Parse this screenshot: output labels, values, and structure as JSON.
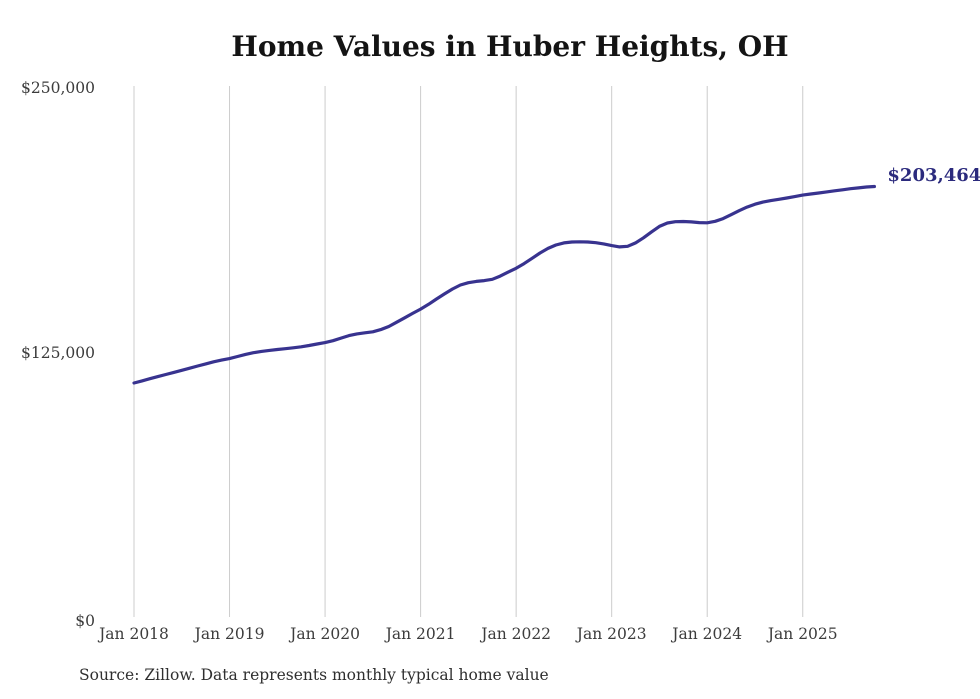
{
  "header": {
    "title": "Home Values in Huber Heights, OH"
  },
  "footer": {
    "source_note": "Source: Zillow. Data represents monthly typical home value"
  },
  "colors": {
    "line": "#38338f",
    "end_label_text": "#2b2a7d",
    "gridline": "#cccccc",
    "axis_text": "#3c3c3c",
    "title_text": "#141414",
    "background": "#ffffff"
  },
  "chart_data": {
    "type": "line",
    "title": "Home Values in Huber Heights, OH",
    "xlabel": "",
    "ylabel": "",
    "ylim": [
      0,
      250000
    ],
    "grid": "vertical-only",
    "legend": "none",
    "x_start": "Jan 2018",
    "x_end": "Oct 2025",
    "x_interval": "month",
    "x_tick_labels": [
      "Jan 2018",
      "Jan 2019",
      "Jan 2020",
      "Jan 2021",
      "Jan 2022",
      "Jan 2023",
      "Jan 2024",
      "Jan 2025"
    ],
    "y_ticks": [
      {
        "label": "$0",
        "value": 0
      },
      {
        "label": "$125,000",
        "value": 125000
      },
      {
        "label": "$250,000",
        "value": 250000
      }
    ],
    "end_label": "$203,464",
    "end_value": 203464,
    "series": [
      {
        "name": "Monthly typical home value",
        "values": [
          110600,
          111600,
          112600,
          113600,
          114600,
          115600,
          116600,
          117600,
          118600,
          119600,
          120600,
          121400,
          122100,
          123100,
          124100,
          124900,
          125500,
          126000,
          126400,
          126800,
          127200,
          127700,
          128300,
          129000,
          129700,
          130600,
          131800,
          133000,
          133800,
          134300,
          134800,
          135800,
          137300,
          139300,
          141400,
          143500,
          145500,
          147800,
          150300,
          152700,
          155000,
          156900,
          158000,
          158600,
          159000,
          159600,
          161100,
          163000,
          164800,
          167000,
          169500,
          172000,
          174200,
          175800,
          176800,
          177200,
          177300,
          177200,
          176900,
          176300,
          175500,
          174900,
          175200,
          176800,
          179200,
          182000,
          184600,
          186200,
          186800,
          186900,
          186700,
          186400,
          186300,
          187000,
          188300,
          190100,
          192000,
          193700,
          195100,
          196100,
          196800,
          197400,
          198000,
          198700,
          199400,
          199900,
          200400,
          200900,
          201400,
          201900,
          202400,
          202800,
          203200,
          203464
        ]
      }
    ]
  }
}
